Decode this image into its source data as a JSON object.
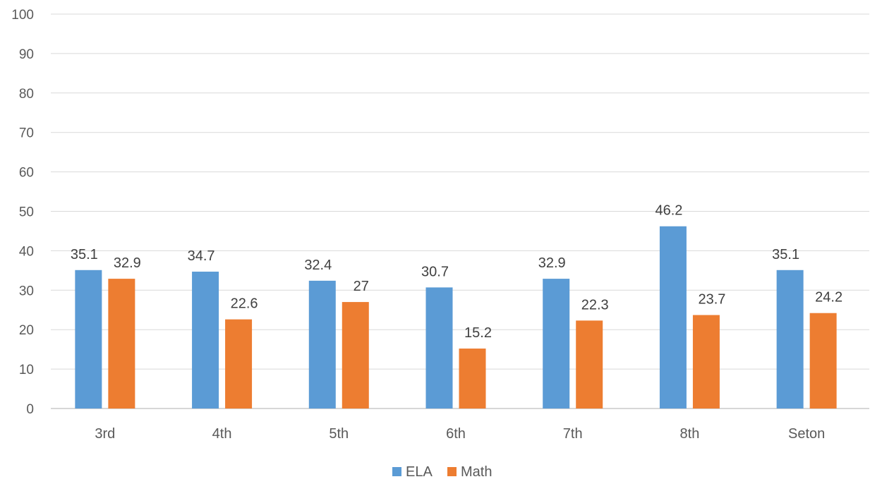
{
  "chart_data": {
    "type": "bar",
    "categories": [
      "3rd",
      "4th",
      "5th",
      "6th",
      "7th",
      "8th",
      "Seton"
    ],
    "series": [
      {
        "name": "ELA",
        "color": "#5b9bd5",
        "values": [
          35.1,
          34.7,
          32.4,
          30.7,
          32.9,
          46.2,
          35.1
        ]
      },
      {
        "name": "Math",
        "color": "#ed7d31",
        "values": [
          32.9,
          22.6,
          27,
          15.2,
          22.3,
          23.7,
          24.2
        ]
      }
    ],
    "title": "",
    "xlabel": "",
    "ylabel": "",
    "ylim": [
      0,
      100
    ],
    "yticks": [
      0,
      10,
      20,
      30,
      40,
      50,
      60,
      70,
      80,
      90,
      100
    ],
    "grid": true,
    "legend_position": "bottom",
    "data_labels": true
  }
}
